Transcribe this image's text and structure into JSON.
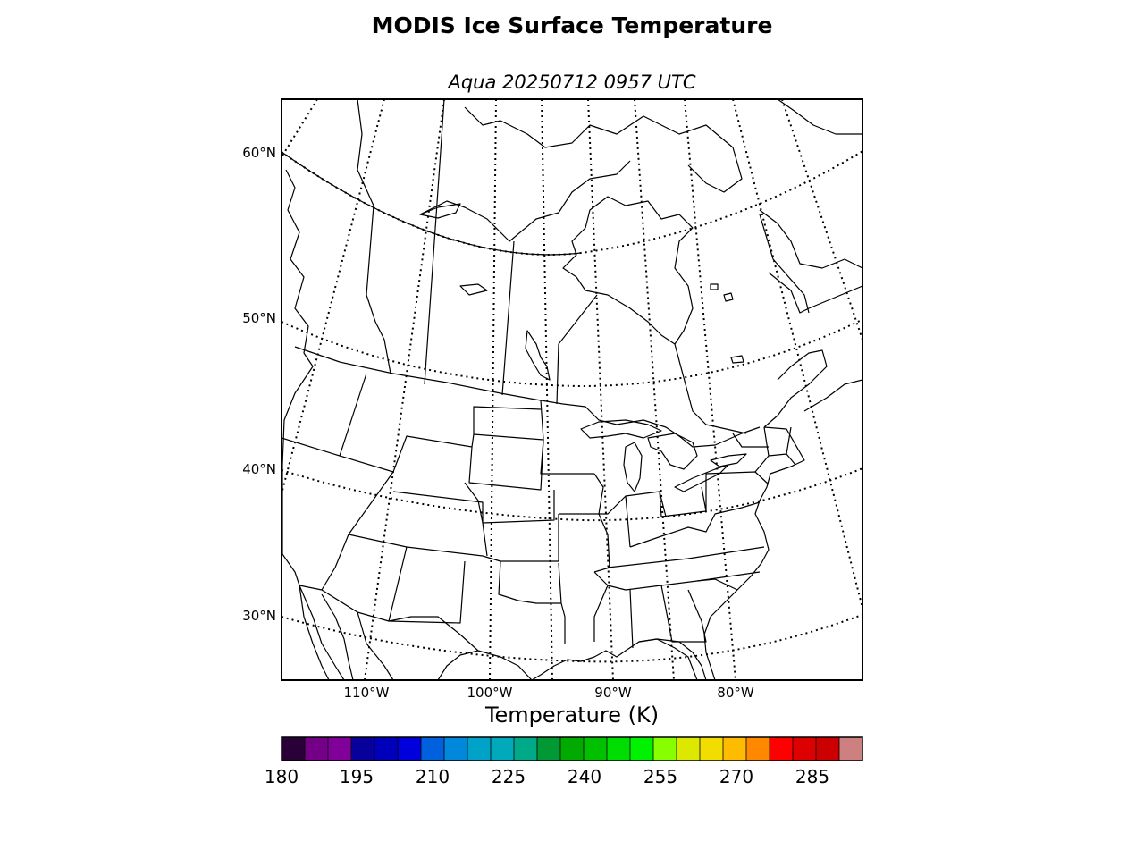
{
  "figure": {
    "title": "MODIS Ice Surface Temperature",
    "subtitle": "Aqua 20250712 0957 UTC"
  },
  "map": {
    "projection": "lambert-conformal",
    "region": "North America (central & eastern US, Canada)",
    "gridline_style": "dotted",
    "lat_labels": [
      "60°N",
      "50°N",
      "40°N",
      "30°N"
    ],
    "lon_labels": [
      "110°W",
      "100°W",
      "90°W",
      "80°W"
    ],
    "features": [
      "coastlines",
      "country-borders",
      "state-province-borders",
      "lakes"
    ]
  },
  "colorbar": {
    "label": "Temperature (K)",
    "tick_labels": [
      "180",
      "195",
      "210",
      "225",
      "240",
      "255",
      "270",
      "285"
    ],
    "colors": [
      "#2a0038",
      "#740088",
      "#82009a",
      "#08009a",
      "#0000bb",
      "#0000dd",
      "#0060dd",
      "#0088dd",
      "#00a2c8",
      "#00aabb",
      "#00aa88",
      "#009933",
      "#00aa00",
      "#00c000",
      "#00dd00",
      "#00f200",
      "#88ff00",
      "#dde800",
      "#f2dd00",
      "#ffbb00",
      "#ff8800",
      "#ff0000",
      "#dd0000",
      "#cc0000",
      "#cc8080"
    ]
  },
  "chart_data": {
    "type": "heatmap",
    "title": "MODIS Ice Surface Temperature",
    "subtitle": "Aqua 20250712 0957 UTC",
    "colorbar_label": "Temperature (K)",
    "colorbar_range": [
      180,
      295
    ],
    "colorbar_ticks": [
      180,
      195,
      210,
      225,
      240,
      255,
      270,
      285
    ],
    "values": []
  }
}
